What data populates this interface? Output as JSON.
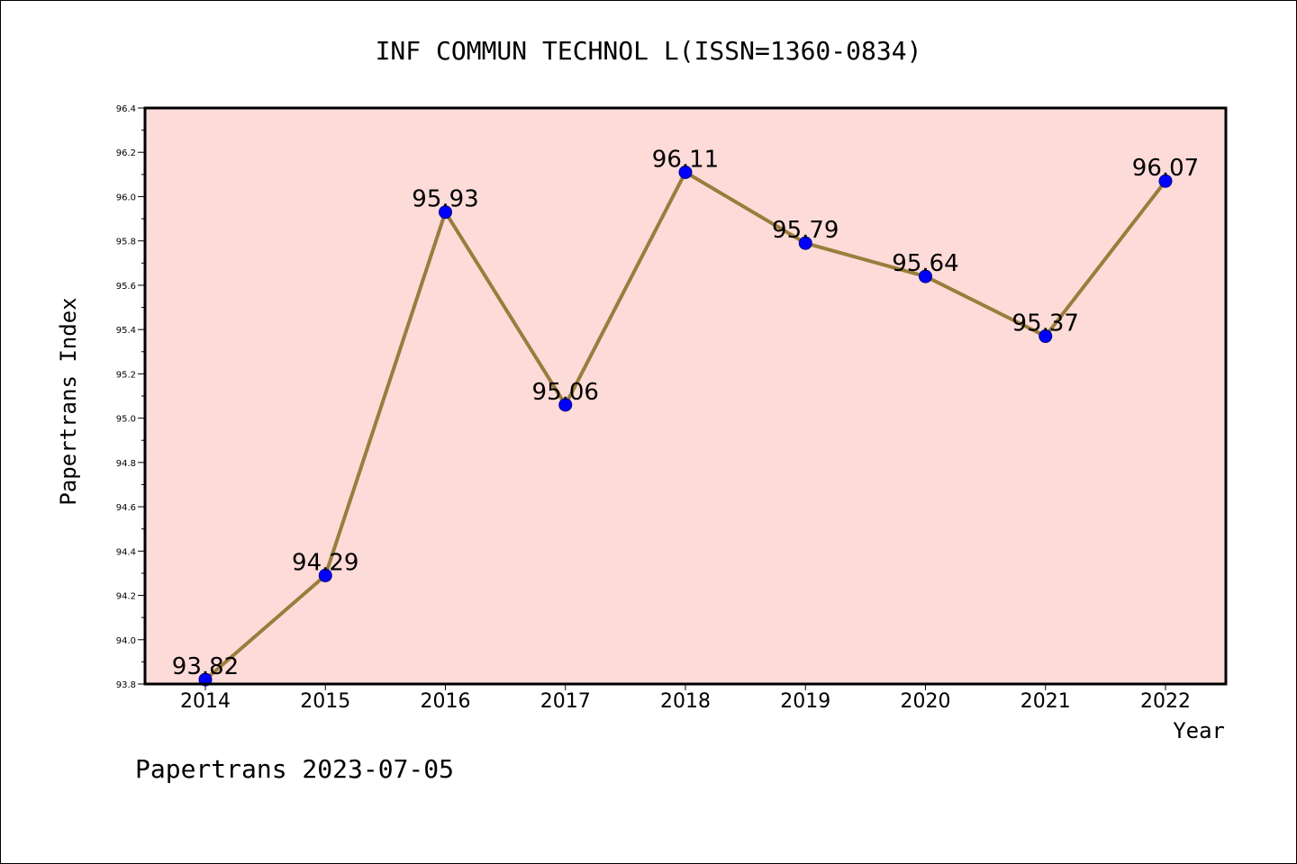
{
  "chart_data": {
    "type": "line",
    "title": "INF COMMUN TECHNOL L(ISSN=1360-0834)",
    "xlabel": "Year",
    "ylabel": "Papertrans Index",
    "categories": [
      "2014",
      "2015",
      "2016",
      "2017",
      "2018",
      "2019",
      "2020",
      "2021",
      "2022"
    ],
    "values": [
      93.82,
      94.29,
      95.93,
      95.06,
      96.11,
      95.79,
      95.64,
      95.37,
      96.07
    ],
    "data_labels": [
      "93.82",
      "94.29",
      "95.93",
      "95.06",
      "96.11",
      "95.79",
      "95.64",
      "95.37",
      "96.07"
    ],
    "ylim": [
      93.8,
      96.4
    ],
    "yticks": [
      "93.8",
      "94.0",
      "94.2",
      "94.4",
      "94.6",
      "94.8",
      "95.0",
      "95.2",
      "95.4",
      "95.6",
      "95.8",
      "96.0",
      "96.2",
      "96.4"
    ],
    "grid": false,
    "legend": "none",
    "plot_background": "#fddbd8",
    "line_color": "#9a7d3c",
    "marker_color": "#0000ff"
  },
  "footer": {
    "text": "Papertrans 2023-07-05"
  }
}
